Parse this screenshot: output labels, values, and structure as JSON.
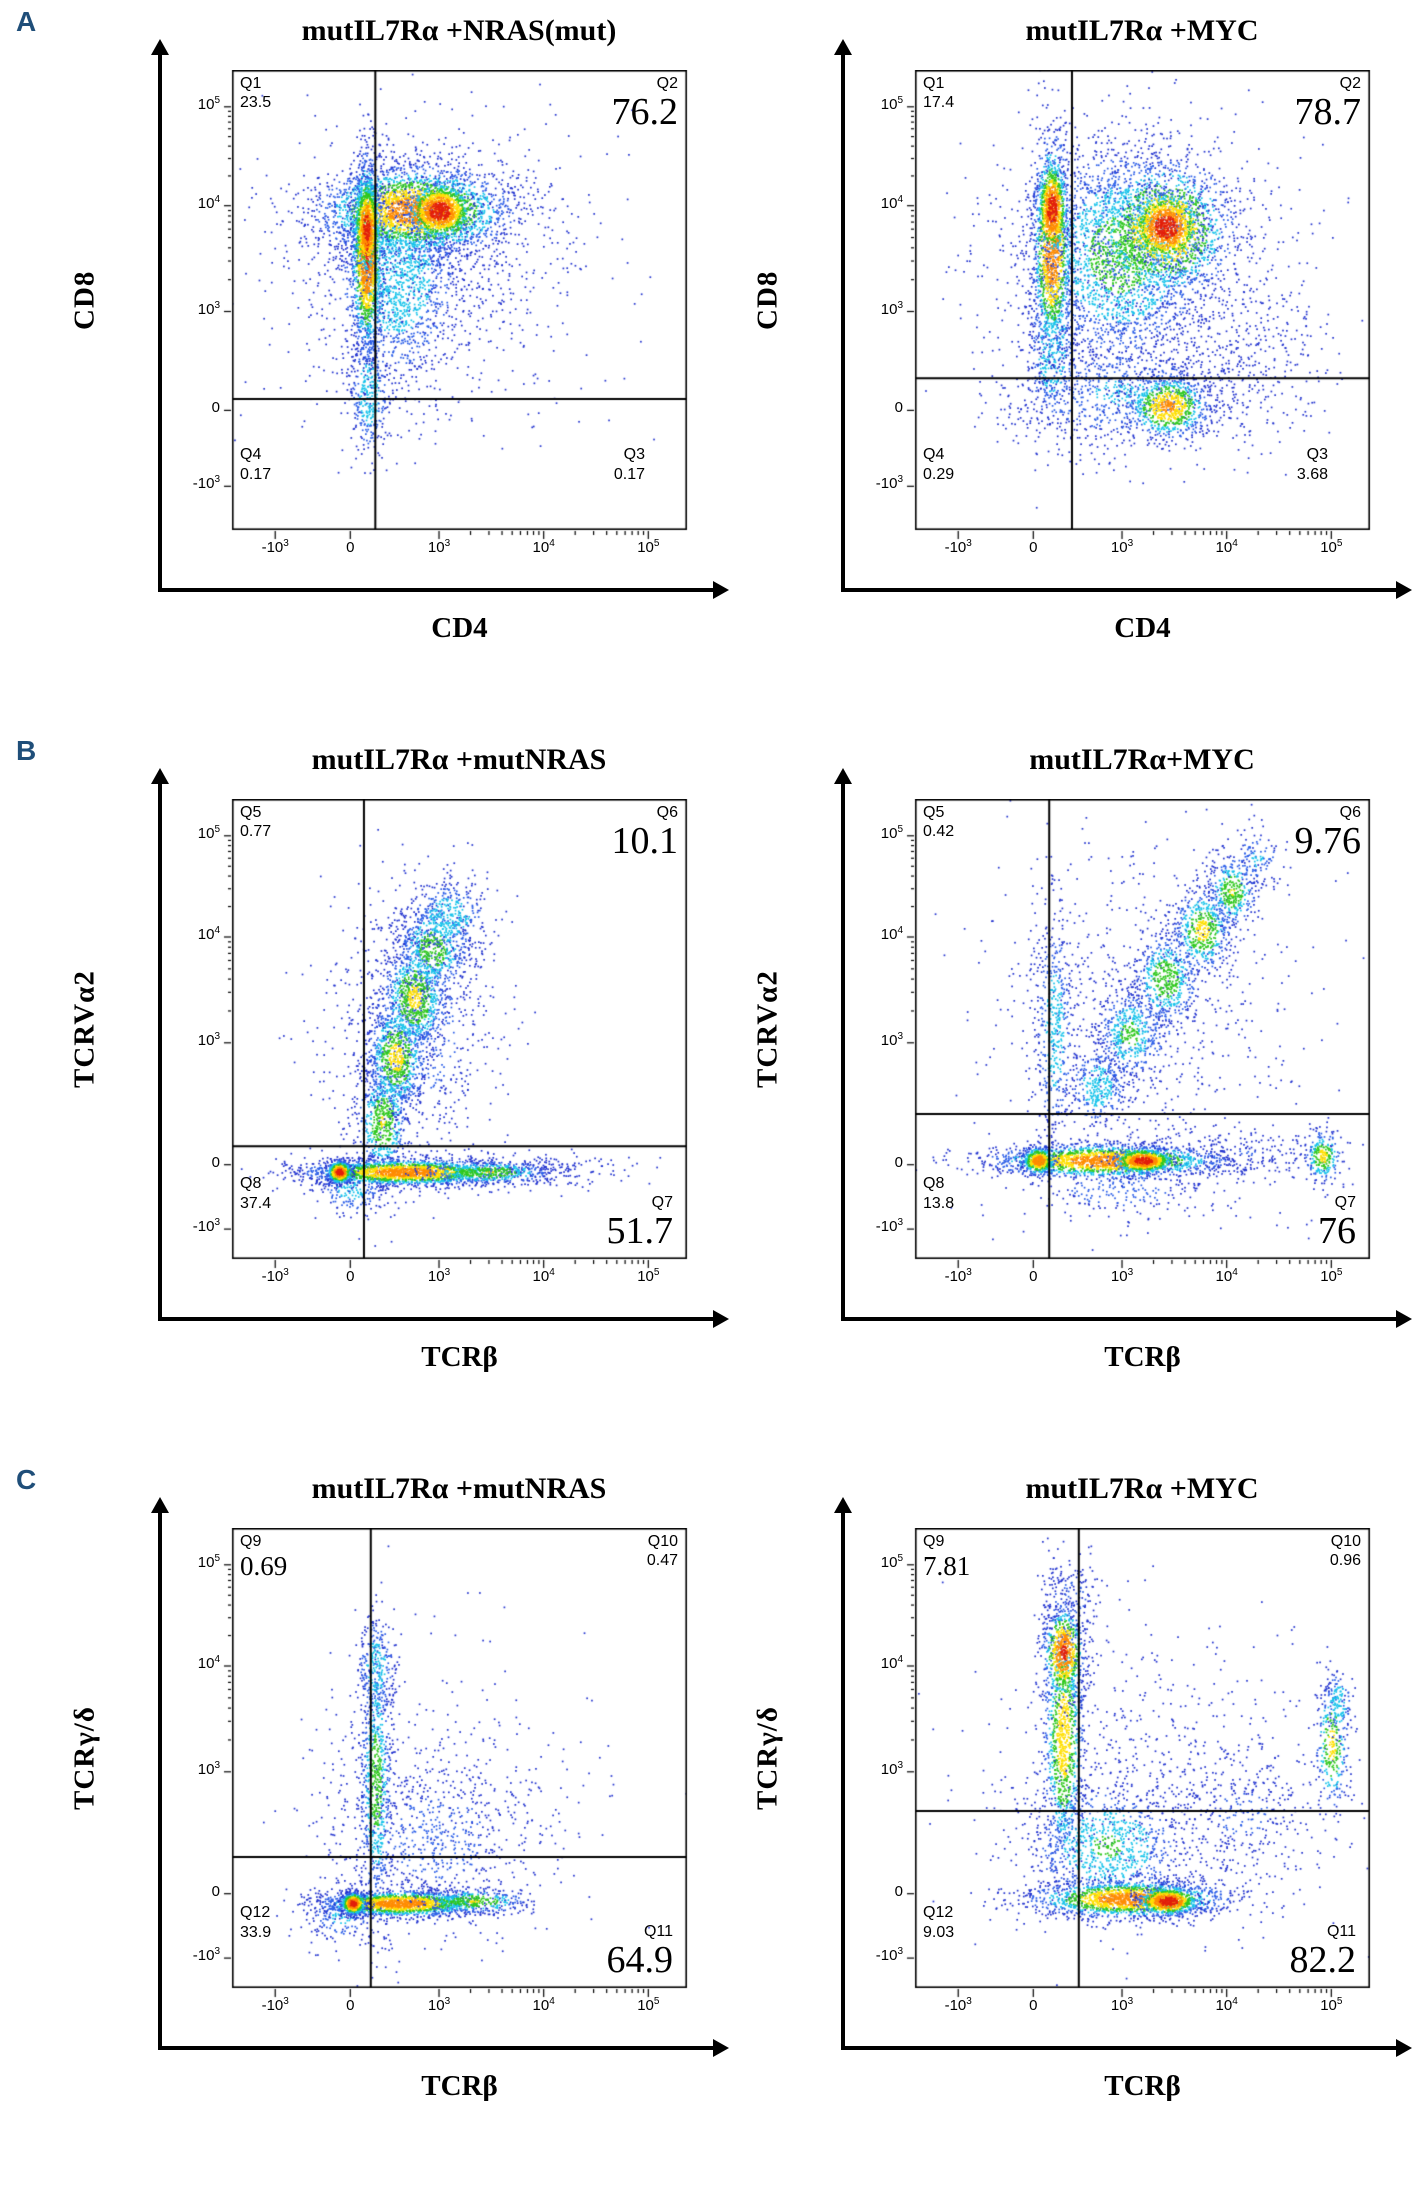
{
  "figure": {
    "rows": [
      {
        "label": "A"
      },
      {
        "label": "B"
      },
      {
        "label": "C"
      }
    ]
  },
  "palette": {
    "panel_label_color": "#1f4e79",
    "density_scale": [
      "#2233cf",
      "#2c5fe8",
      "#17c3ea",
      "#2fc81e",
      "#ffdf00",
      "#ff8c00",
      "#e21f0c"
    ],
    "density_thresholds": [
      0.085,
      0.18,
      0.3,
      0.44,
      0.6,
      0.8
    ]
  },
  "chart_data": [
    {
      "type": "flow_density",
      "panel": "A",
      "title": "mutIL7Rα +NRAS(mut)",
      "xlabel": "CD4",
      "ylabel": "CD8",
      "x_ticks": [
        {
          "label": "-10",
          "exp": "3",
          "f": 0.095
        },
        {
          "label": "0",
          "f": 0.26
        },
        {
          "label": "10",
          "exp": "3",
          "f": 0.455
        },
        {
          "label": "10",
          "exp": "4",
          "f": 0.685
        },
        {
          "label": "10",
          "exp": "5",
          "f": 0.915
        }
      ],
      "y_ticks": [
        {
          "label": "-10",
          "exp": "3",
          "f": 0.095
        },
        {
          "label": "0",
          "f": 0.26
        },
        {
          "label": "10",
          "exp": "3",
          "f": 0.475
        },
        {
          "label": "10",
          "exp": "4",
          "f": 0.705
        },
        {
          "label": "10",
          "exp": "5",
          "f": 0.92
        }
      ],
      "gate": {
        "x": 0.315,
        "y": 0.285
      },
      "quadrants": [
        {
          "id": "Q1",
          "value": "23.5",
          "corner": "tl",
          "value_style": "small"
        },
        {
          "id": "Q2",
          "value": "76.2",
          "corner": "tr",
          "value_style": "large"
        },
        {
          "id": "Q4",
          "value": "0.17",
          "corner": "bl",
          "value_style": "small"
        },
        {
          "id": "Q3",
          "value": "0.17",
          "corner": "br",
          "value_style": "small"
        }
      ],
      "clusters": [
        [
          0.42,
          0.55,
          0.2,
          0.2,
          500,
          0.07
        ],
        [
          0.36,
          0.55,
          0.075,
          0.12,
          1600,
          0.3
        ],
        [
          0.3,
          0.3,
          0.022,
          0.07,
          350,
          0.3
        ],
        [
          0.55,
          0.6,
          0.12,
          0.12,
          250,
          0.07
        ],
        [
          0.4,
          0.695,
          0.105,
          0.048,
          2600,
          0.72
        ],
        [
          0.295,
          0.6,
          0.017,
          0.105,
          1500,
          0.85
        ],
        [
          0.295,
          0.66,
          0.014,
          0.05,
          500,
          0.95
        ],
        [
          0.455,
          0.695,
          0.034,
          0.03,
          900,
          1.0
        ]
      ]
    },
    {
      "type": "flow_density",
      "panel": "A",
      "title": "mutIL7Rα +MYC",
      "xlabel": "CD4",
      "ylabel": "CD8",
      "x_ticks": [
        {
          "label": "-10",
          "exp": "3",
          "f": 0.095
        },
        {
          "label": "0",
          "f": 0.26
        },
        {
          "label": "10",
          "exp": "3",
          "f": 0.455
        },
        {
          "label": "10",
          "exp": "4",
          "f": 0.685
        },
        {
          "label": "10",
          "exp": "5",
          "f": 0.915
        }
      ],
      "y_ticks": [
        {
          "label": "-10",
          "exp": "3",
          "f": 0.095
        },
        {
          "label": "0",
          "f": 0.26
        },
        {
          "label": "10",
          "exp": "3",
          "f": 0.475
        },
        {
          "label": "10",
          "exp": "4",
          "f": 0.705
        },
        {
          "label": "10",
          "exp": "5",
          "f": 0.92
        }
      ],
      "gate": {
        "x": 0.345,
        "y": 0.33
      },
      "quadrants": [
        {
          "id": "Q1",
          "value": "17.4",
          "corner": "tl",
          "value_style": "small"
        },
        {
          "id": "Q2",
          "value": "78.7",
          "corner": "tr",
          "value_style": "large"
        },
        {
          "id": "Q4",
          "value": "0.29",
          "corner": "bl",
          "value_style": "small"
        },
        {
          "id": "Q3",
          "value": "3.68",
          "corner": "br",
          "value_style": "small"
        }
      ],
      "clusters": [
        [
          0.48,
          0.55,
          0.19,
          0.19,
          700,
          0.08
        ],
        [
          0.45,
          0.6,
          0.1,
          0.12,
          2200,
          0.38
        ],
        [
          0.3,
          0.4,
          0.03,
          0.1,
          400,
          0.3
        ],
        [
          0.45,
          0.3,
          0.13,
          0.06,
          700,
          0.2
        ],
        [
          0.75,
          0.4,
          0.09,
          0.1,
          300,
          0.08
        ],
        [
          0.3,
          0.62,
          0.021,
          0.12,
          1300,
          0.8
        ],
        [
          0.3,
          0.7,
          0.016,
          0.05,
          600,
          1.0
        ],
        [
          0.545,
          0.655,
          0.075,
          0.075,
          1500,
          0.7
        ],
        [
          0.55,
          0.66,
          0.038,
          0.038,
          900,
          1.0
        ],
        [
          0.555,
          0.27,
          0.045,
          0.035,
          800,
          0.65
        ]
      ]
    },
    {
      "type": "flow_density",
      "panel": "B",
      "title": "mutIL7Rα +mutNRAS",
      "xlabel": "TCRβ",
      "ylabel": "TCRVα2",
      "x_ticks": [
        {
          "label": "-10",
          "exp": "3",
          "f": 0.095
        },
        {
          "label": "0",
          "f": 0.26
        },
        {
          "label": "10",
          "exp": "3",
          "f": 0.455
        },
        {
          "label": "10",
          "exp": "4",
          "f": 0.685
        },
        {
          "label": "10",
          "exp": "5",
          "f": 0.915
        }
      ],
      "y_ticks": [
        {
          "label": "-10",
          "exp": "3",
          "f": 0.065
        },
        {
          "label": "0",
          "f": 0.205
        },
        {
          "label": "10",
          "exp": "3",
          "f": 0.47
        },
        {
          "label": "10",
          "exp": "4",
          "f": 0.7
        },
        {
          "label": "10",
          "exp": "5",
          "f": 0.92
        }
      ],
      "gate": {
        "x": 0.29,
        "y": 0.245
      },
      "quadrants": [
        {
          "id": "Q5",
          "value": "0.77",
          "corner": "tl",
          "value_style": "small"
        },
        {
          "id": "Q6",
          "value": "10.1",
          "corner": "tr",
          "value_style": "large"
        },
        {
          "id": "Q8",
          "value": "37.4",
          "corner": "bl",
          "value_style": "small"
        },
        {
          "id": "Q7",
          "value": "51.7",
          "corner": "br",
          "value_style": "large"
        }
      ],
      "clusters": [
        [
          0.4,
          0.5,
          0.1,
          0.17,
          800,
          0.13
        ],
        [
          0.33,
          0.3,
          0.028,
          0.06,
          600,
          0.45
        ],
        [
          0.36,
          0.44,
          0.032,
          0.06,
          800,
          0.5
        ],
        [
          0.4,
          0.57,
          0.036,
          0.06,
          800,
          0.48
        ],
        [
          0.44,
          0.675,
          0.04,
          0.05,
          550,
          0.4
        ],
        [
          0.475,
          0.745,
          0.045,
          0.04,
          350,
          0.3
        ],
        [
          0.26,
          0.16,
          0.04,
          0.035,
          250,
          0.25
        ],
        [
          0.7,
          0.195,
          0.1,
          0.02,
          160,
          0.08
        ],
        [
          0.38,
          0.19,
          0.105,
          0.014,
          2000,
          0.75
        ],
        [
          0.56,
          0.19,
          0.07,
          0.013,
          450,
          0.45
        ],
        [
          0.235,
          0.19,
          0.013,
          0.012,
          550,
          1.0
        ]
      ]
    },
    {
      "type": "flow_density",
      "panel": "B",
      "title": "mutIL7Rα+MYC",
      "xlabel": "TCRβ",
      "ylabel": "TCRVα2",
      "x_ticks": [
        {
          "label": "-10",
          "exp": "3",
          "f": 0.095
        },
        {
          "label": "0",
          "f": 0.26
        },
        {
          "label": "10",
          "exp": "3",
          "f": 0.455
        },
        {
          "label": "10",
          "exp": "4",
          "f": 0.685
        },
        {
          "label": "10",
          "exp": "5",
          "f": 0.915
        }
      ],
      "y_ticks": [
        {
          "label": "-10",
          "exp": "3",
          "f": 0.065
        },
        {
          "label": "0",
          "f": 0.205
        },
        {
          "label": "10",
          "exp": "3",
          "f": 0.47
        },
        {
          "label": "10",
          "exp": "4",
          "f": 0.7
        },
        {
          "label": "10",
          "exp": "5",
          "f": 0.92
        }
      ],
      "gate": {
        "x": 0.295,
        "y": 0.315
      },
      "quadrants": [
        {
          "id": "Q5",
          "value": "0.42",
          "corner": "tl",
          "value_style": "small"
        },
        {
          "id": "Q6",
          "value": "9.76",
          "corner": "tr",
          "value_style": "large"
        },
        {
          "id": "Q8",
          "value": "13.8",
          "corner": "bl",
          "value_style": "small"
        },
        {
          "id": "Q7",
          "value": "76",
          "corner": "br",
          "value_style": "large"
        }
      ],
      "clusters": [
        [
          0.5,
          0.5,
          0.18,
          0.2,
          800,
          0.09
        ],
        [
          0.305,
          0.5,
          0.022,
          0.13,
          450,
          0.28
        ],
        [
          0.4,
          0.375,
          0.032,
          0.045,
          350,
          0.3
        ],
        [
          0.47,
          0.49,
          0.036,
          0.05,
          450,
          0.35
        ],
        [
          0.55,
          0.61,
          0.036,
          0.05,
          500,
          0.42
        ],
        [
          0.63,
          0.715,
          0.032,
          0.045,
          500,
          0.5
        ],
        [
          0.695,
          0.8,
          0.027,
          0.038,
          350,
          0.45
        ],
        [
          0.75,
          0.87,
          0.03,
          0.035,
          120,
          0.2
        ],
        [
          0.45,
          0.15,
          0.1,
          0.03,
          200,
          0.15
        ],
        [
          0.72,
          0.23,
          0.1,
          0.03,
          200,
          0.09
        ],
        [
          0.42,
          0.215,
          0.125,
          0.018,
          1800,
          0.75
        ],
        [
          0.27,
          0.215,
          0.018,
          0.015,
          450,
          0.8
        ],
        [
          0.5,
          0.215,
          0.032,
          0.013,
          650,
          1.0
        ],
        [
          0.895,
          0.225,
          0.02,
          0.028,
          260,
          0.5
        ]
      ]
    },
    {
      "type": "flow_density",
      "panel": "C",
      "title": "mutIL7Rα +mutNRAS",
      "xlabel": "TCRβ",
      "ylabel": "TCRγ/δ",
      "x_ticks": [
        {
          "label": "-10",
          "exp": "3",
          "f": 0.095
        },
        {
          "label": "0",
          "f": 0.26
        },
        {
          "label": "10",
          "exp": "3",
          "f": 0.455
        },
        {
          "label": "10",
          "exp": "4",
          "f": 0.685
        },
        {
          "label": "10",
          "exp": "5",
          "f": 0.915
        }
      ],
      "y_ticks": [
        {
          "label": "-10",
          "exp": "3",
          "f": 0.065
        },
        {
          "label": "0",
          "f": 0.205
        },
        {
          "label": "10",
          "exp": "3",
          "f": 0.47
        },
        {
          "label": "10",
          "exp": "4",
          "f": 0.7
        },
        {
          "label": "10",
          "exp": "5",
          "f": 0.92
        }
      ],
      "gate": {
        "x": 0.305,
        "y": 0.285
      },
      "quadrants": [
        {
          "id": "Q9",
          "value": "0.69",
          "corner": "tl",
          "value_style": "medium"
        },
        {
          "id": "Q10",
          "value": "0.47",
          "corner": "tr",
          "value_style": "small"
        },
        {
          "id": "Q12",
          "value": "33.9",
          "corner": "bl",
          "value_style": "small"
        },
        {
          "id": "Q11",
          "value": "64.9",
          "corner": "br",
          "value_style": "large"
        }
      ],
      "clusters": [
        [
          0.45,
          0.4,
          0.18,
          0.16,
          400,
          0.07
        ],
        [
          0.315,
          0.45,
          0.018,
          0.15,
          800,
          0.38
        ],
        [
          0.315,
          0.7,
          0.022,
          0.06,
          250,
          0.28
        ],
        [
          0.45,
          0.33,
          0.11,
          0.1,
          550,
          0.13
        ],
        [
          0.24,
          0.16,
          0.04,
          0.03,
          200,
          0.22
        ],
        [
          0.37,
          0.185,
          0.085,
          0.014,
          1600,
          0.75
        ],
        [
          0.53,
          0.19,
          0.06,
          0.014,
          350,
          0.45
        ],
        [
          0.265,
          0.185,
          0.013,
          0.012,
          550,
          1.0
        ]
      ]
    },
    {
      "type": "flow_density",
      "panel": "C",
      "title": "mutIL7Rα +MYC",
      "xlabel": "TCRβ",
      "ylabel": "TCRγ/δ",
      "x_ticks": [
        {
          "label": "-10",
          "exp": "3",
          "f": 0.095
        },
        {
          "label": "0",
          "f": 0.26
        },
        {
          "label": "10",
          "exp": "3",
          "f": 0.455
        },
        {
          "label": "10",
          "exp": "4",
          "f": 0.685
        },
        {
          "label": "10",
          "exp": "5",
          "f": 0.915
        }
      ],
      "y_ticks": [
        {
          "label": "-10",
          "exp": "3",
          "f": 0.065
        },
        {
          "label": "0",
          "f": 0.205
        },
        {
          "label": "10",
          "exp": "3",
          "f": 0.47
        },
        {
          "label": "10",
          "exp": "4",
          "f": 0.7
        },
        {
          "label": "10",
          "exp": "5",
          "f": 0.92
        }
      ],
      "gate": {
        "x": 0.36,
        "y": 0.385
      },
      "quadrants": [
        {
          "id": "Q9",
          "value": "7.81",
          "corner": "tl",
          "value_style": "medium"
        },
        {
          "id": "Q10",
          "value": "0.96",
          "corner": "tr",
          "value_style": "small"
        },
        {
          "id": "Q12",
          "value": "9.03",
          "corner": "bl",
          "value_style": "small"
        },
        {
          "id": "Q11",
          "value": "82.2",
          "corner": "br",
          "value_style": "large"
        }
      ],
      "clusters": [
        [
          0.5,
          0.45,
          0.19,
          0.18,
          600,
          0.08
        ],
        [
          0.325,
          0.55,
          0.022,
          0.14,
          1100,
          0.55
        ],
        [
          0.325,
          0.73,
          0.022,
          0.05,
          650,
          0.85
        ],
        [
          0.34,
          0.85,
          0.04,
          0.05,
          150,
          0.12
        ],
        [
          0.42,
          0.31,
          0.09,
          0.07,
          900,
          0.32
        ],
        [
          0.72,
          0.38,
          0.1,
          0.08,
          350,
          0.1
        ],
        [
          0.47,
          0.195,
          0.105,
          0.02,
          1700,
          0.75
        ],
        [
          0.555,
          0.19,
          0.032,
          0.015,
          650,
          1.0
        ],
        [
          0.915,
          0.53,
          0.018,
          0.07,
          300,
          0.5
        ],
        [
          0.93,
          0.62,
          0.015,
          0.04,
          120,
          0.3
        ]
      ]
    }
  ]
}
